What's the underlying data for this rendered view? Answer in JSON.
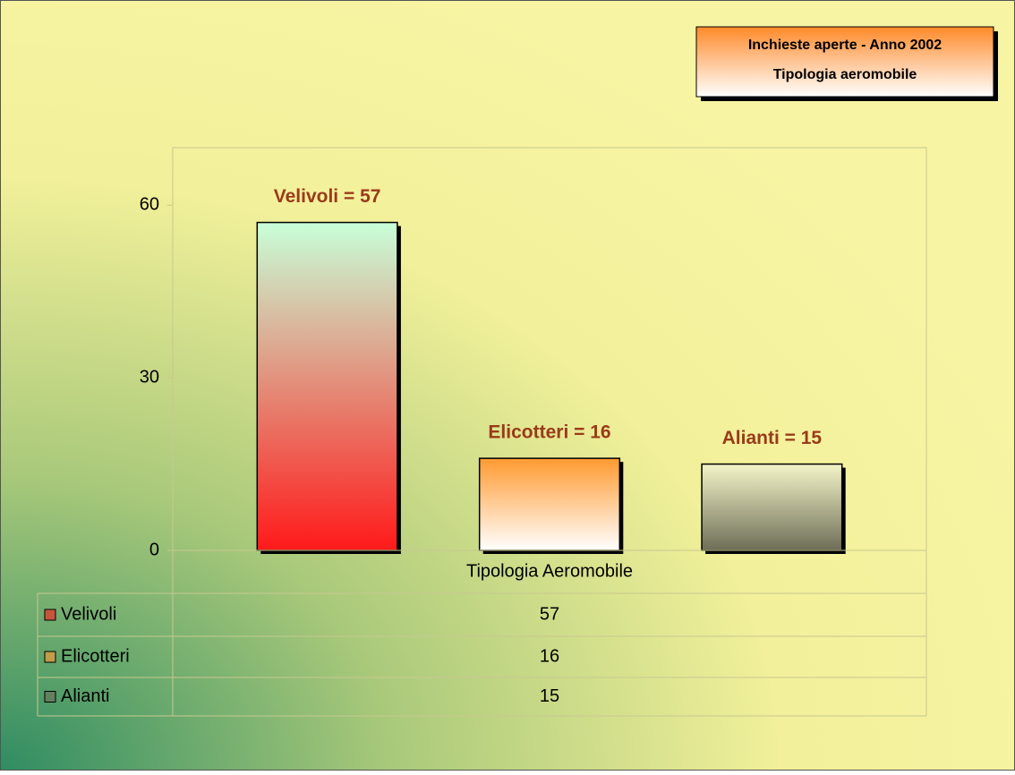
{
  "chart_data": {
    "type": "bar",
    "title": "Inchieste aperte - Anno 2002",
    "subtitle": "Tipologia aeromobile",
    "categories": [
      "Tipologia Aeromobile"
    ],
    "series": [
      {
        "name": "Velivoli",
        "color": "#ff1a1a",
        "values": [
          57
        ],
        "value_labels": [
          "Velivoli = 57"
        ]
      },
      {
        "name": "Elicotteri",
        "color": "#ff9a30",
        "values": [
          16
        ],
        "value_labels": [
          "Elicotteri = 16"
        ]
      },
      {
        "name": "Alianti",
        "color": "#6e6e58",
        "values": [
          15
        ],
        "value_labels": [
          "Alianti = 15"
        ]
      }
    ],
    "ylim": [
      0,
      70
    ],
    "yticks": [
      0,
      30,
      60
    ],
    "data_table": true
  }
}
